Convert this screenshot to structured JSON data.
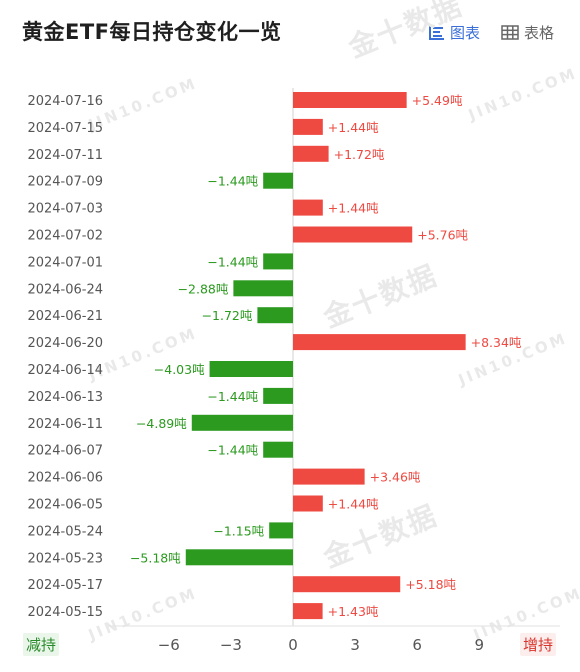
{
  "header": {
    "title": "黄金ETF每日持仓变化一览",
    "chart_toggle_label": "图表",
    "table_toggle_label": "表格"
  },
  "legend": {
    "decrease_label": "减持",
    "increase_label": "增持"
  },
  "watermark": {
    "brand_cn": "金十数据",
    "brand_en": "JIN10.COM"
  },
  "colors": {
    "increase": "#ee4a42",
    "decrease": "#2b9a1f",
    "accent": "#3b6fd8"
  },
  "chart_data": {
    "type": "bar",
    "orientation": "horizontal",
    "unit": "吨",
    "categories": [
      "2024-07-16",
      "2024-07-15",
      "2024-07-11",
      "2024-07-09",
      "2024-07-03",
      "2024-07-02",
      "2024-07-01",
      "2024-06-24",
      "2024-06-21",
      "2024-06-20",
      "2024-06-14",
      "2024-06-13",
      "2024-06-11",
      "2024-06-07",
      "2024-06-06",
      "2024-06-05",
      "2024-05-24",
      "2024-05-23",
      "2024-05-17",
      "2024-05-15"
    ],
    "values": [
      5.49,
      1.44,
      1.72,
      -1.44,
      1.44,
      5.76,
      -1.44,
      -2.88,
      -1.72,
      8.34,
      -4.03,
      -1.44,
      -4.89,
      -1.44,
      3.46,
      1.44,
      -1.15,
      -5.18,
      5.18,
      1.43
    ],
    "data_labels": [
      "+5.49吨",
      "+1.44吨",
      "+1.72吨",
      "−1.44吨",
      "+1.44吨",
      "+5.76吨",
      "−1.44吨",
      "−2.88吨",
      "−1.72吨",
      "+8.34吨",
      "−4.03吨",
      "−1.44吨",
      "−4.89吨",
      "−1.44吨",
      "+3.46吨",
      "+1.44吨",
      "−1.15吨",
      "−5.18吨",
      "+5.18吨",
      "+1.43吨"
    ],
    "x_ticks": [
      -6,
      -3,
      0,
      3,
      6,
      9
    ],
    "x_tick_labels": [
      "−6",
      "−3",
      "0",
      "3",
      "6",
      "9"
    ],
    "xlim": [
      -6,
      9
    ]
  }
}
